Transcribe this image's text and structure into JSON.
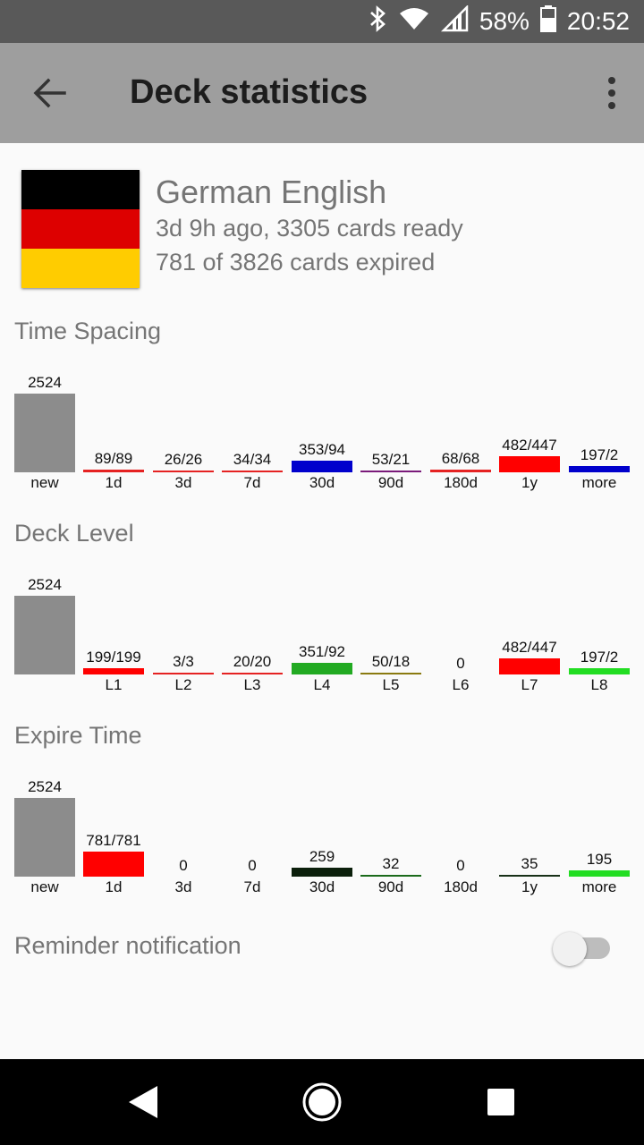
{
  "status_bar": {
    "battery": "58%",
    "time": "20:52",
    "icons": [
      "bluetooth-icon",
      "wifi-icon",
      "signal-icon",
      "battery-icon"
    ]
  },
  "app_bar": {
    "title": "Deck statistics",
    "back_icon": "arrow-left-icon",
    "menu_icon": "more-vertical-icon"
  },
  "deck": {
    "name": "German English",
    "line1": "3d 9h ago, 3305 cards ready",
    "line2": "781 of 3826 cards expired",
    "flag_colors": [
      "#000000",
      "#dd0000",
      "#ffcc00"
    ]
  },
  "sections": {
    "time_spacing": "Time Spacing",
    "deck_level": "Deck Level",
    "expire_time": "Expire Time"
  },
  "chart_data": [
    {
      "type": "bar",
      "title": "Time Spacing",
      "categories": [
        "new",
        "1d",
        "3d",
        "7d",
        "30d",
        "90d",
        "180d",
        "1y",
        "more"
      ],
      "labels": [
        "2524",
        "89/89",
        "26/26",
        "34/34",
        "353/94",
        "53/21",
        "68/68",
        "482/447",
        "197/2"
      ],
      "values": [
        2524,
        89,
        26,
        34,
        353,
        53,
        68,
        482,
        197
      ],
      "colors": [
        "#8c8c8c",
        "#e52222",
        "#e52222",
        "#e52222",
        "#0000cc",
        "#7a1a7a",
        "#e52222",
        "#ff0000",
        "#0000cc"
      ]
    },
    {
      "type": "bar",
      "title": "Deck Level",
      "categories": [
        "",
        "L1",
        "L2",
        "L3",
        "L4",
        "L5",
        "L6",
        "L7",
        "L8"
      ],
      "labels": [
        "2524",
        "199/199",
        "3/3",
        "20/20",
        "351/92",
        "50/18",
        "0",
        "482/447",
        "197/2"
      ],
      "values": [
        2524,
        199,
        3,
        20,
        351,
        50,
        0,
        482,
        197
      ],
      "colors": [
        "#8c8c8c",
        "#ff0000",
        "#e52222",
        "#e52222",
        "#22aa22",
        "#8a7a10",
        "#e52222",
        "#ff0000",
        "#22dd22"
      ]
    },
    {
      "type": "bar",
      "title": "Expire Time",
      "categories": [
        "new",
        "1d",
        "3d",
        "7d",
        "30d",
        "90d",
        "180d",
        "1y",
        "more"
      ],
      "labels": [
        "2524",
        "781/781",
        "0",
        "0",
        "259",
        "32",
        "0",
        "35",
        "195"
      ],
      "values": [
        2524,
        781,
        0,
        0,
        259,
        32,
        0,
        35,
        195
      ],
      "colors": [
        "#8c8c8c",
        "#ff0000",
        "#e52222",
        "#e52222",
        "#0b1f0b",
        "#1a6a1a",
        "#e52222",
        "#173017",
        "#22dd22"
      ]
    }
  ],
  "reminder": {
    "label": "Reminder notification",
    "enabled": false
  },
  "nav_bar": {
    "icons": [
      "back-triangle-icon",
      "home-circle-icon",
      "recents-square-icon"
    ]
  }
}
